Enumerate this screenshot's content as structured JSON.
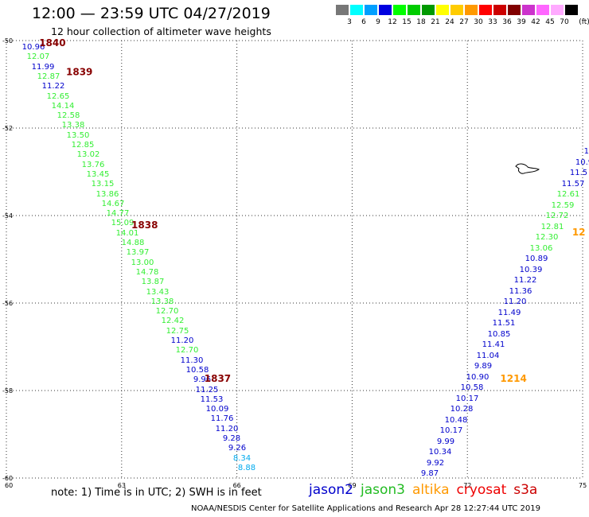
{
  "title": "12:00 — 23:59 UTC 04/27/2019",
  "subtitle": "12 hour collection of altimeter wave heights",
  "legend": {
    "unit": "(ft)",
    "bins": [
      {
        "color": "#777777",
        "label": "3"
      },
      {
        "color": "#00ffff",
        "label": "6"
      },
      {
        "color": "#009fff",
        "label": "9"
      },
      {
        "color": "#0000e0",
        "label": "12"
      },
      {
        "color": "#00ff00",
        "label": "15"
      },
      {
        "color": "#00cc00",
        "label": "18"
      },
      {
        "color": "#009900",
        "label": "21"
      },
      {
        "color": "#ffff00",
        "label": "24"
      },
      {
        "color": "#ffcc00",
        "label": "27"
      },
      {
        "color": "#ff9900",
        "label": "30"
      },
      {
        "color": "#ff0000",
        "label": "33"
      },
      {
        "color": "#cc0000",
        "label": "36"
      },
      {
        "color": "#800000",
        "label": "39"
      },
      {
        "color": "#cc33cc",
        "label": "42"
      },
      {
        "color": "#ff66ff",
        "label": "45"
      },
      {
        "color": "#ffaaff",
        "label": "70"
      },
      {
        "color": "#000000",
        "label": ""
      }
    ]
  },
  "map": {
    "lon_range": [
      60,
      75
    ],
    "lat_range": [
      -60,
      -50
    ],
    "lon_ticks": [
      "60",
      "63",
      "66",
      "69",
      "72",
      "75"
    ],
    "lat_ticks": [
      "-50",
      "-52",
      "-54",
      "-56",
      "-58",
      "-60"
    ],
    "grid": "dotted",
    "colors": {
      "jason2": "#0000cc",
      "jason3": "#33ee33",
      "altika": "#ff9900",
      "cryosat": "#990000",
      "s3a": "#880000",
      "sixft": "#00aaee"
    },
    "passes": [
      {
        "label": "1840",
        "sat": "s3a",
        "lon": 61.2,
        "lat": -50.05
      },
      {
        "label": "1839",
        "sat": "s3a",
        "lon": 61.9,
        "lat": -50.72
      },
      {
        "label": "1838",
        "sat": "s3a",
        "lon": 63.6,
        "lat": -54.22
      },
      {
        "label": "1837",
        "sat": "s3a",
        "lon": 65.5,
        "lat": -57.73
      },
      {
        "label": "1214",
        "sat": "altika",
        "lon": 73.2,
        "lat": -57.73
      },
      {
        "label": "12",
        "sat": "altika",
        "lon": 74.9,
        "lat": -54.38
      }
    ],
    "track1": [
      [
        "10.96",
        "jason2"
      ],
      [
        "12.07",
        "jason3"
      ],
      [
        "11.99",
        "jason2"
      ],
      [
        "12.87",
        "jason3"
      ],
      [
        "11.22",
        "jason2"
      ],
      [
        "12.65",
        "jason3"
      ],
      [
        "14.14",
        "jason3"
      ],
      [
        "12.58",
        "jason3"
      ],
      [
        "13.38",
        "jason3"
      ],
      [
        "13.50",
        "jason3"
      ],
      [
        "12.85",
        "jason3"
      ],
      [
        "13.02",
        "jason3"
      ],
      [
        "13.76",
        "jason3"
      ],
      [
        "13.45",
        "jason3"
      ],
      [
        "13.15",
        "jason3"
      ],
      [
        "13.86",
        "jason3"
      ],
      [
        "14.67",
        "jason3"
      ],
      [
        "14.77",
        "jason3"
      ],
      [
        "15.09",
        "jason3"
      ],
      [
        "14.01",
        "jason3"
      ],
      [
        "14.88",
        "jason3"
      ],
      [
        "13.97",
        "jason3"
      ],
      [
        "13.00",
        "jason3"
      ],
      [
        "14.78",
        "jason3"
      ],
      [
        "13.87",
        "jason3"
      ],
      [
        "13.43",
        "jason3"
      ],
      [
        "13.38",
        "jason3"
      ],
      [
        "12.70",
        "jason3"
      ],
      [
        "12.42",
        "jason3"
      ],
      [
        "12.75",
        "jason3"
      ],
      [
        "11.20",
        "jason2"
      ],
      [
        "12.70",
        "jason3"
      ],
      [
        "11.30",
        "jason2"
      ],
      [
        "10.58",
        "jason2"
      ],
      [
        "9.96",
        "jason2"
      ],
      [
        "11.25",
        "jason2"
      ],
      [
        "11.53",
        "jason2"
      ],
      [
        "10.09",
        "jason2"
      ],
      [
        "11.76",
        "jason2"
      ],
      [
        "11.20",
        "jason2"
      ],
      [
        "9.28",
        "jason2"
      ],
      [
        "9.26",
        "jason2"
      ],
      [
        "8.34",
        "sixft"
      ],
      [
        "8.88",
        "sixft"
      ]
    ],
    "track2": [
      [
        "14",
        "jason2"
      ],
      [
        "10",
        "jason2"
      ],
      [
        "10.9",
        "jason2"
      ],
      [
        "11.5",
        "jason2"
      ],
      [
        "11.57",
        "jason2"
      ],
      [
        "12.61",
        "jason3"
      ],
      [
        "12.59",
        "jason3"
      ],
      [
        "12.72",
        "jason3"
      ],
      [
        "12.81",
        "jason3"
      ],
      [
        "12.30",
        "jason3"
      ],
      [
        "13.06",
        "jason3"
      ],
      [
        "10.89",
        "jason2"
      ],
      [
        "10.39",
        "jason2"
      ],
      [
        "11.22",
        "jason2"
      ],
      [
        "11.36",
        "jason2"
      ],
      [
        "11.20",
        "jason2"
      ],
      [
        "11.49",
        "jason2"
      ],
      [
        "11.51",
        "jason2"
      ],
      [
        "10.85",
        "jason2"
      ],
      [
        "11.41",
        "jason2"
      ],
      [
        "11.04",
        "jason2"
      ],
      [
        "9.89",
        "jason2"
      ],
      [
        "10.90",
        "jason2"
      ],
      [
        "10.58",
        "jason2"
      ],
      [
        "10.17",
        "jason2"
      ],
      [
        "10.28",
        "jason2"
      ],
      [
        "10.48",
        "jason2"
      ],
      [
        "10.17",
        "jason2"
      ],
      [
        "9.99",
        "jason2"
      ],
      [
        "10.34",
        "jason2"
      ],
      [
        "9.92",
        "jason2"
      ],
      [
        "9.87",
        "jason2"
      ]
    ]
  },
  "note": "note:  1) Time is in UTC;  2) SWH is in feet",
  "satellites": [
    {
      "name": "jason2",
      "color": "#0000cc"
    },
    {
      "name": "jason3",
      "color": "#22bb22"
    },
    {
      "name": "altika",
      "color": "#ff9900"
    },
    {
      "name": "cryosat",
      "color": "#ee0000"
    },
    {
      "name": "s3a",
      "color": "#cc0000"
    }
  ],
  "footer": "NOAA/NESDIS Center for Satellite Applications and Research    Apr 28 12:27:44 UTC 2019"
}
